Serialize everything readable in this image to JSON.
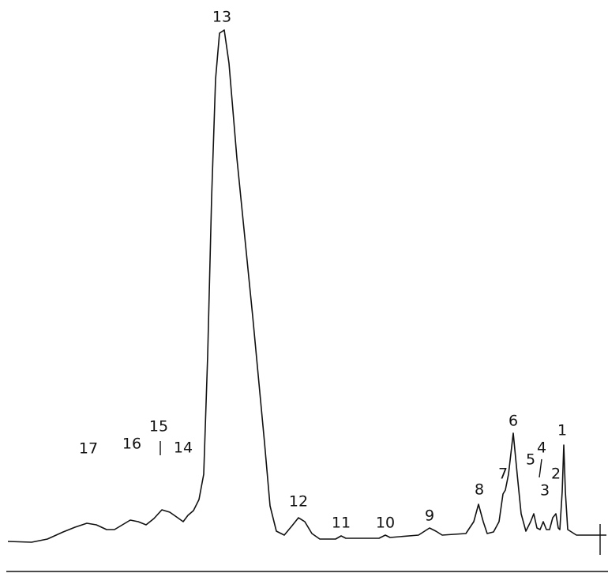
{
  "peaks": [
    {
      "label": "1"
    },
    {
      "label": "2"
    },
    {
      "label": "3"
    },
    {
      "label": "4"
    },
    {
      "label": "5"
    },
    {
      "label": "6"
    },
    {
      "label": "7"
    },
    {
      "label": "8"
    },
    {
      "label": "9"
    },
    {
      "label": "10"
    },
    {
      "label": "11"
    },
    {
      "label": "12"
    },
    {
      "label": "13"
    },
    {
      "label": "14"
    },
    {
      "label": "15"
    },
    {
      "label": "16"
    },
    {
      "label": "17"
    }
  ]
}
